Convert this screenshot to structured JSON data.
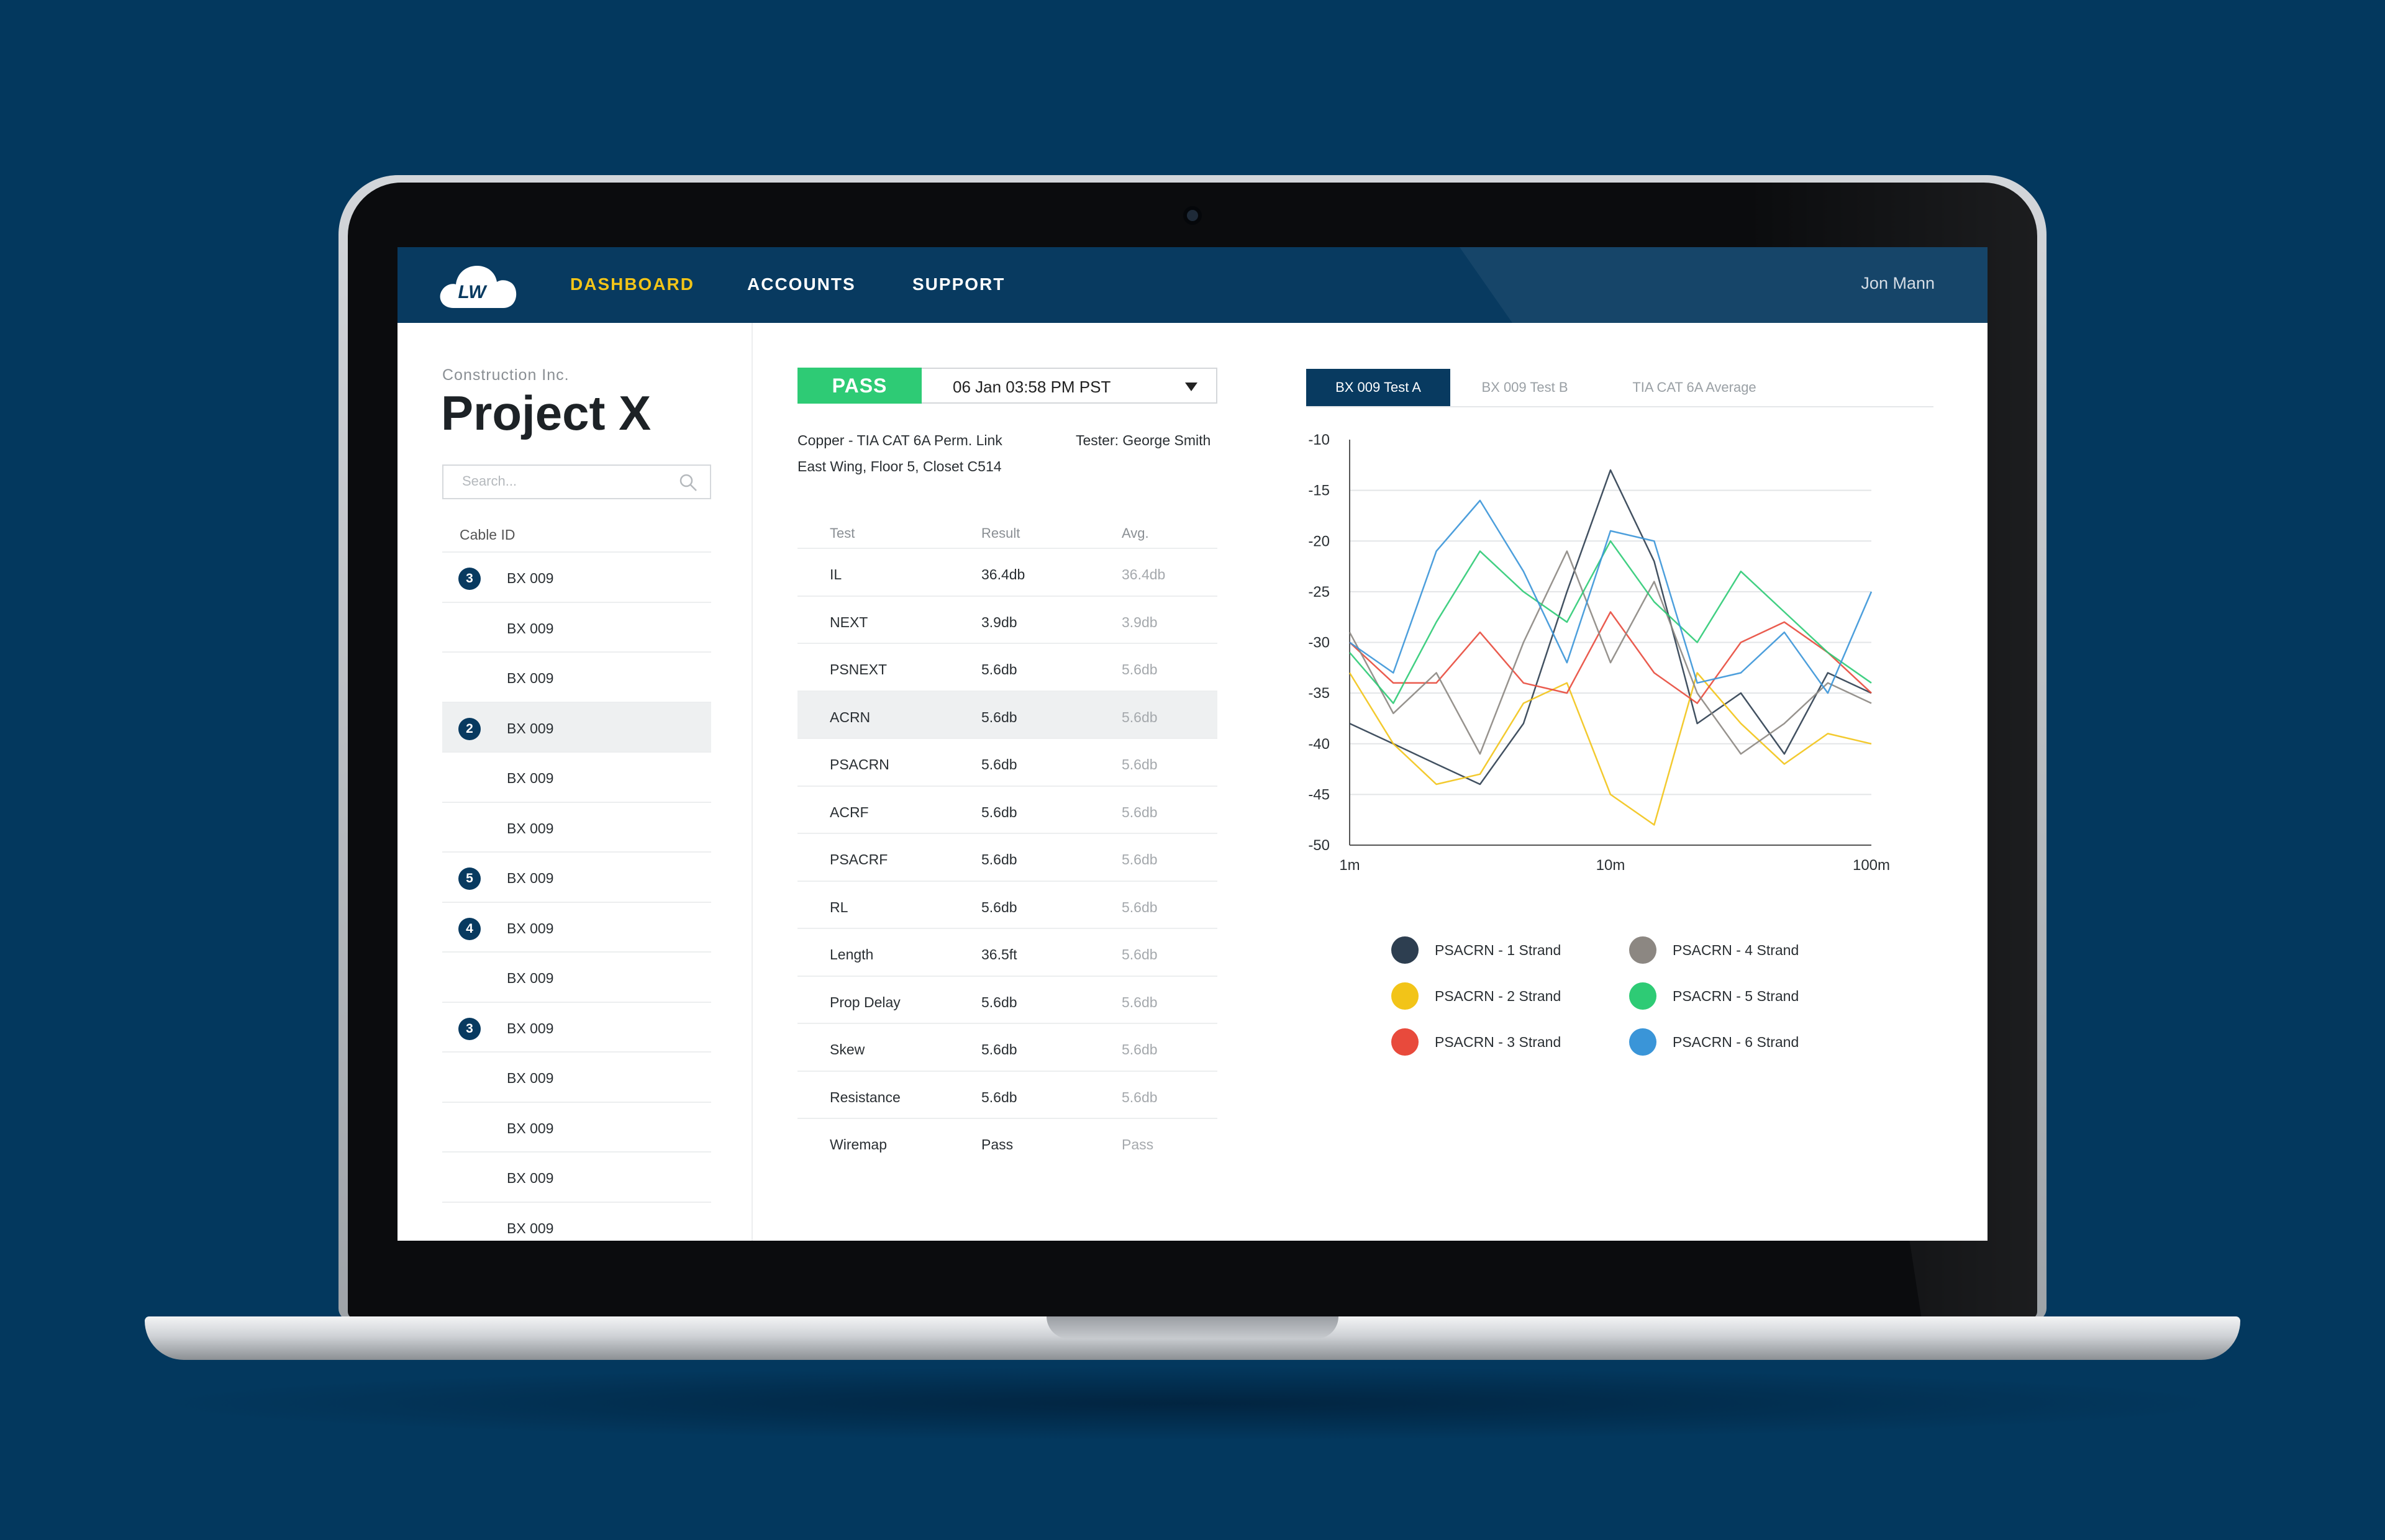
{
  "app": {
    "logo_text": "LW",
    "nav": [
      {
        "label": "DASHBOARD",
        "active": true
      },
      {
        "label": "ACCOUNTS",
        "active": false
      },
      {
        "label": "SUPPORT",
        "active": false
      }
    ],
    "user_name": "Jon Mann"
  },
  "sidebar": {
    "company": "Construction Inc.",
    "project": "Project X",
    "search_placeholder": "Search...",
    "column_header": "Cable ID",
    "cables": [
      {
        "label": "BX 009",
        "badge": "3",
        "selected": false
      },
      {
        "label": "BX 009",
        "badge": "",
        "selected": false
      },
      {
        "label": "BX 009",
        "badge": "",
        "selected": false
      },
      {
        "label": "BX 009",
        "badge": "2",
        "selected": true
      },
      {
        "label": "BX 009",
        "badge": "",
        "selected": false
      },
      {
        "label": "BX 009",
        "badge": "",
        "selected": false
      },
      {
        "label": "BX 009",
        "badge": "5",
        "selected": false
      },
      {
        "label": "BX 009",
        "badge": "4",
        "selected": false
      },
      {
        "label": "BX 009",
        "badge": "",
        "selected": false
      },
      {
        "label": "BX 009",
        "badge": "3",
        "selected": false
      },
      {
        "label": "BX 009",
        "badge": "",
        "selected": false
      },
      {
        "label": "BX 009",
        "badge": "",
        "selected": false
      },
      {
        "label": "BX 009",
        "badge": "",
        "selected": false
      },
      {
        "label": "BX 009",
        "badge": "",
        "selected": false
      }
    ]
  },
  "result": {
    "status": "PASS",
    "date": "06 Jan 03:58 PM PST",
    "cable_type": "Copper - TIA CAT 6A Perm. Link",
    "location": "East Wing, Floor 5, Closet C514",
    "tester": "Tester: George Smith",
    "colors": {
      "pass": "#2ECB75",
      "primary": "#083A60",
      "accent": "#F2C418"
    }
  },
  "tests_table": {
    "headers": [
      "Test",
      "Result",
      "Avg."
    ],
    "selected_row": 3,
    "rows": [
      [
        "IL",
        "36.4db",
        "36.4db"
      ],
      [
        "NEXT",
        "3.9db",
        "3.9db"
      ],
      [
        "PSNEXT",
        "5.6db",
        "5.6db"
      ],
      [
        "ACRN",
        "5.6db",
        "5.6db"
      ],
      [
        "PSACRN",
        "5.6db",
        "5.6db"
      ],
      [
        "ACRF",
        "5.6db",
        "5.6db"
      ],
      [
        "PSACRF",
        "5.6db",
        "5.6db"
      ],
      [
        "RL",
        "5.6db",
        "5.6db"
      ],
      [
        "Length",
        "36.5ft",
        "5.6db"
      ],
      [
        "Prop Delay",
        "5.6db",
        "5.6db"
      ],
      [
        "Skew",
        "5.6db",
        "5.6db"
      ],
      [
        "Resistance",
        "5.6db",
        "5.6db"
      ],
      [
        "Wiremap",
        "Pass",
        "Pass"
      ]
    ]
  },
  "chart_tabs": [
    {
      "label": "BX 009 Test A",
      "active": true
    },
    {
      "label": "BX 009 Test B",
      "active": false
    },
    {
      "label": "TIA CAT 6A Average",
      "active": false
    }
  ],
  "chart_data": {
    "type": "line",
    "x_scale": "log",
    "x_tick_labels": [
      "1m",
      "10m",
      "100m"
    ],
    "y_tick_labels": [
      "-10",
      "-15",
      "-20",
      "-25",
      "-30",
      "-35",
      "-40",
      "-45",
      "-50"
    ],
    "ylim": [
      -50,
      -10
    ],
    "xlim": [
      1,
      100
    ],
    "grid": true,
    "legend_position": "bottom",
    "x": [
      1,
      1.47,
      2.15,
      3.16,
      4.64,
      6.81,
      10,
      14.7,
      21.5,
      31.6,
      46.4,
      68.1,
      100
    ],
    "series": [
      {
        "name": "PSACRN - 1 Strand",
        "color": "#2D3E50",
        "values": [
          -38,
          -40,
          -42,
          -44,
          -38,
          -25,
          -13,
          -22,
          -38,
          -35,
          -41,
          -33,
          -35
        ]
      },
      {
        "name": "PSACRN - 2 Strand",
        "color": "#F2C418",
        "values": [
          -33,
          -40,
          -44,
          -43,
          -36,
          -34,
          -45,
          -48,
          -33,
          -38,
          -42,
          -39,
          -40
        ]
      },
      {
        "name": "PSACRN - 3 Strand",
        "color": "#E84A3C",
        "values": [
          -30,
          -34,
          -34,
          -29,
          -34,
          -35,
          -27,
          -33,
          -36,
          -30,
          -28,
          -31,
          -35
        ]
      },
      {
        "name": "PSACRN - 4 Strand",
        "color": "#8C8782",
        "values": [
          -29,
          -37,
          -33,
          -41,
          -30,
          -21,
          -32,
          -24,
          -35,
          -41,
          -38,
          -34,
          -36
        ]
      },
      {
        "name": "PSACRN - 5 Strand",
        "color": "#2ECB75",
        "values": [
          -31,
          -36,
          -28,
          -21,
          -25,
          -28,
          -20,
          -26,
          -30,
          -23,
          -27,
          -31,
          -34
        ]
      },
      {
        "name": "PSACRN - 6 Strand",
        "color": "#3A95D8",
        "values": [
          -30,
          -33,
          -21,
          -16,
          -23,
          -32,
          -19,
          -20,
          -34,
          -33,
          -29,
          -35,
          -25
        ]
      }
    ]
  }
}
